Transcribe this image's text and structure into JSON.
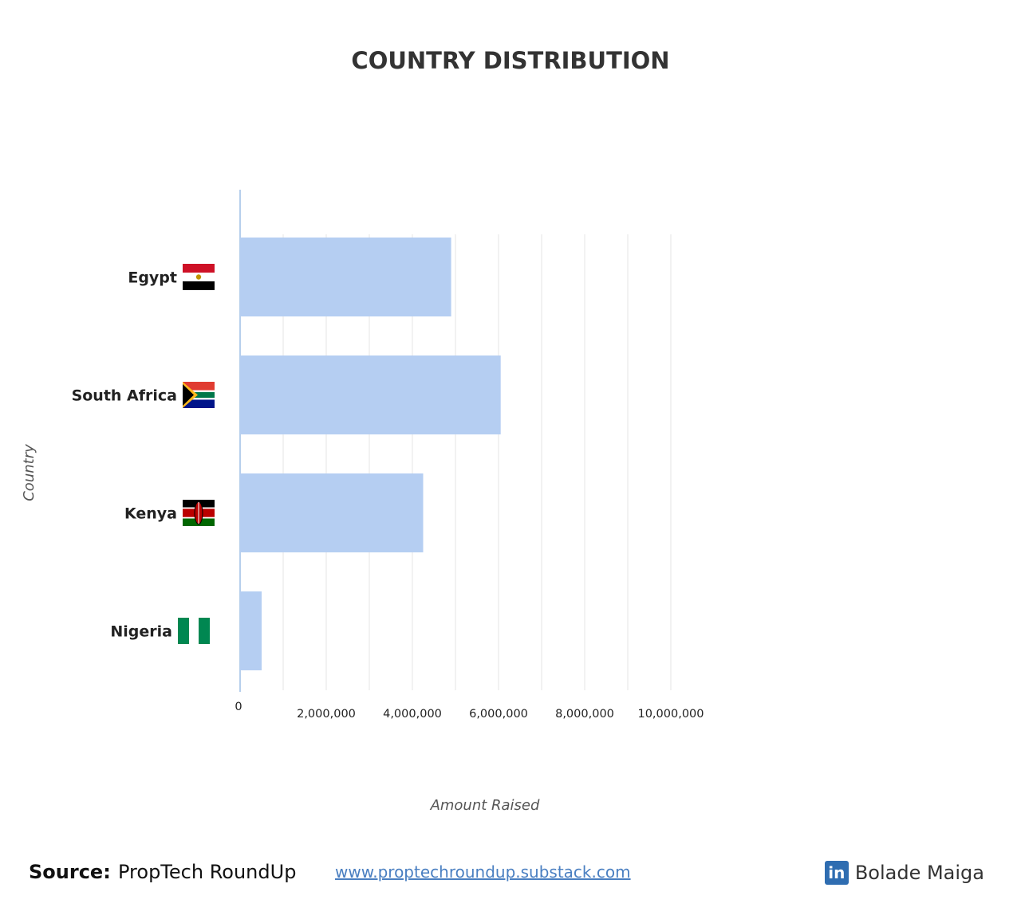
{
  "chart_data": {
    "type": "bar",
    "orientation": "horizontal",
    "title": "COUNTRY DISTRIBUTION",
    "xlabel": "Amount Raised",
    "ylabel": "Country",
    "categories": [
      "Egypt",
      "South Africa",
      "Kenya",
      "Nigeria"
    ],
    "values": [
      4900000,
      6050000,
      4250000,
      500000
    ],
    "xlim": [
      0,
      10500000
    ],
    "x_ticks": [
      0,
      2000000,
      4000000,
      6000000,
      8000000,
      10000000
    ],
    "x_tick_labels": [
      "0",
      "2,000,000",
      "4,000,000",
      "6,000,000",
      "8,000,000",
      "10,000,000"
    ],
    "grid": true,
    "bar_color": "#b5cef2",
    "axis_color": "#9fbfe6",
    "grid_color": "#e4e4e4",
    "flags": [
      "egypt-flag-icon",
      "south-africa-flag-icon",
      "kenya-flag-icon",
      "nigeria-flag-icon"
    ]
  },
  "footer": {
    "source_label": "Source:",
    "source_name": "PropTech RoundUp",
    "source_url": "www.proptechroundup.substack.com",
    "author_icon": "linkedin-icon",
    "author_icon_text": "in",
    "author_name": "Bolade Maiga"
  }
}
